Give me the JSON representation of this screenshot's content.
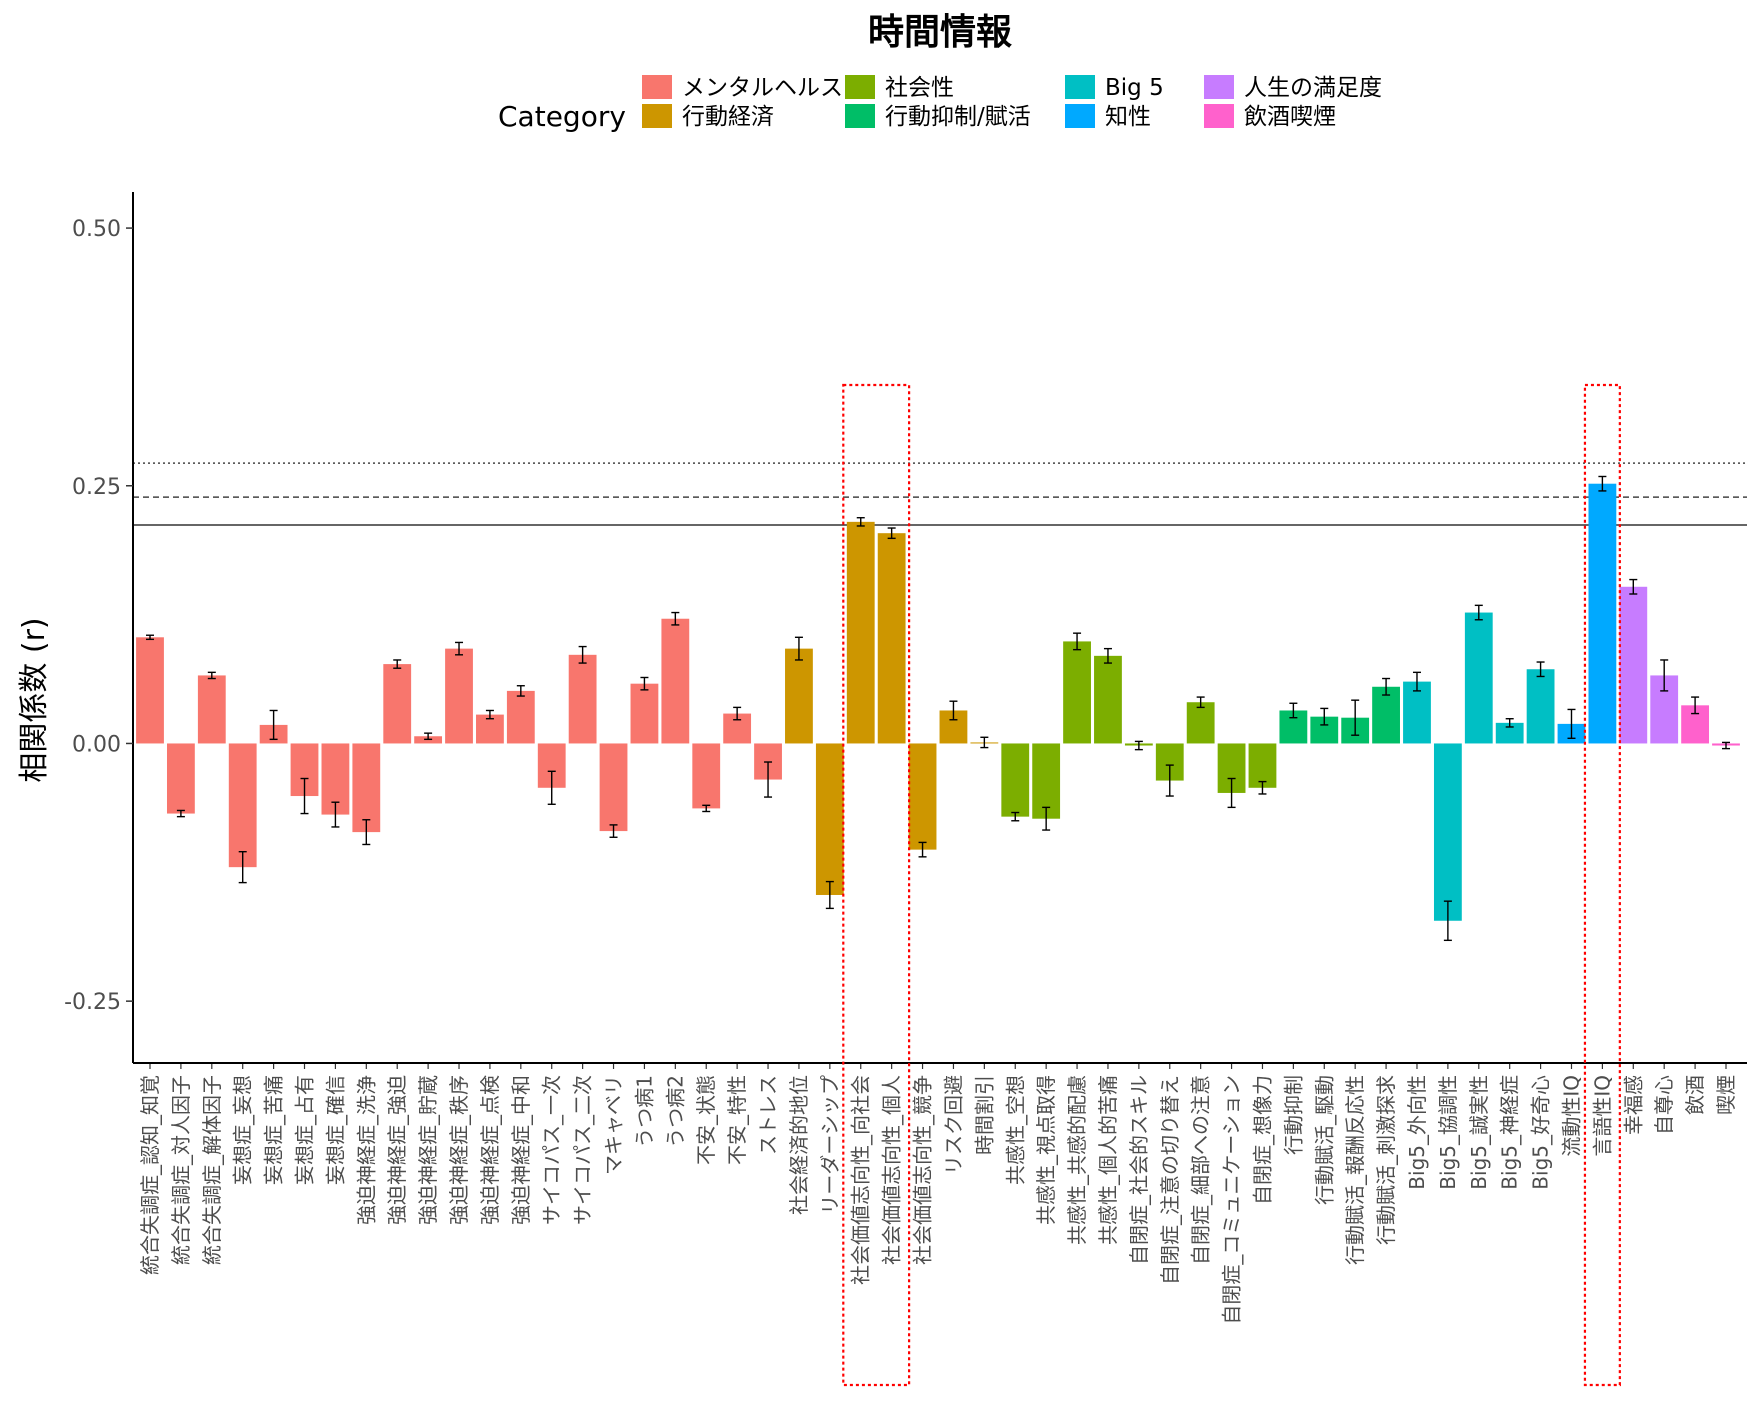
{
  "chart_data": {
    "type": "bar",
    "title": "時間情報",
    "xlabel": "",
    "ylabel": "相関係数 (r)",
    "ylim": [
      -0.31,
      0.535
    ],
    "yticks": [
      -0.25,
      0.0,
      0.25,
      0.5
    ],
    "ytick_labels": [
      "-0.25",
      "0.00",
      "0.25",
      "0.50"
    ],
    "grid": false,
    "legend": {
      "title": "Category",
      "placement": "top",
      "entries": [
        {
          "name": "メンタルヘルス",
          "color": "#F8766D"
        },
        {
          "name": "行動経済",
          "color": "#CD9600"
        },
        {
          "name": "社会性",
          "color": "#7CAE00"
        },
        {
          "name": "行動抑制/賦活",
          "color": "#00BE67"
        },
        {
          "name": "Big 5",
          "color": "#00BFC4"
        },
        {
          "name": "知性",
          "color": "#00A9FF"
        },
        {
          "name": "人生の満足度",
          "color": "#C77CFF"
        },
        {
          "name": "飲酒喫煙",
          "color": "#FF61CC"
        }
      ]
    },
    "reference_lines": [
      {
        "value": 0.272,
        "style": "dotted"
      },
      {
        "value": 0.239,
        "style": "dashed"
      },
      {
        "value": 0.212,
        "style": "solid"
      }
    ],
    "highlight_boxes": [
      {
        "from": "社会価値志向性_向社会",
        "to": "社会価値志向性_個人"
      },
      {
        "from": "言語性IQ",
        "to": "言語性IQ"
      }
    ],
    "bars": [
      {
        "label": "統合失調症_認知_知覚",
        "category": "メンタルヘルス",
        "value": 0.103,
        "err": 0.002
      },
      {
        "label": "統合失調症_対人因子",
        "category": "メンタルヘルス",
        "value": -0.068,
        "err": 0.003
      },
      {
        "label": "統合失調症_解体因子",
        "category": "メンタルヘルス",
        "value": 0.066,
        "err": 0.003
      },
      {
        "label": "妄想症_妄想",
        "category": "メンタルヘルス",
        "value": -0.12,
        "err": 0.015
      },
      {
        "label": "妄想症_苦痛",
        "category": "メンタルヘルス",
        "value": 0.018,
        "err": 0.014
      },
      {
        "label": "妄想症_占有",
        "category": "メンタルヘルス",
        "value": -0.051,
        "err": 0.017
      },
      {
        "label": "妄想症_確信",
        "category": "メンタルヘルス",
        "value": -0.069,
        "err": 0.012
      },
      {
        "label": "強迫神経症_洗浄",
        "category": "メンタルヘルス",
        "value": -0.086,
        "err": 0.012
      },
      {
        "label": "強迫神経症_強迫",
        "category": "メンタルヘルス",
        "value": 0.077,
        "err": 0.004
      },
      {
        "label": "強迫神経症_貯蔵",
        "category": "メンタルヘルス",
        "value": 0.007,
        "err": 0.003
      },
      {
        "label": "強迫神経症_秩序",
        "category": "メンタルヘルス",
        "value": 0.092,
        "err": 0.006
      },
      {
        "label": "強迫神経症_点検",
        "category": "メンタルヘルス",
        "value": 0.028,
        "err": 0.004
      },
      {
        "label": "強迫神経症_中和",
        "category": "メンタルヘルス",
        "value": 0.051,
        "err": 0.005
      },
      {
        "label": "サイコパス_一次",
        "category": "メンタルヘルス",
        "value": -0.043,
        "err": 0.016
      },
      {
        "label": "サイコパス_二次",
        "category": "メンタルヘルス",
        "value": 0.086,
        "err": 0.008
      },
      {
        "label": "マキャベリ",
        "category": "メンタルヘルス",
        "value": -0.085,
        "err": 0.006
      },
      {
        "label": "うつ病1",
        "category": "メンタルヘルス",
        "value": 0.058,
        "err": 0.006
      },
      {
        "label": "うつ病2",
        "category": "メンタルヘルス",
        "value": 0.121,
        "err": 0.006
      },
      {
        "label": "不安_状態",
        "category": "メンタルヘルス",
        "value": -0.063,
        "err": 0.003
      },
      {
        "label": "不安_特性",
        "category": "メンタルヘルス",
        "value": 0.029,
        "err": 0.006
      },
      {
        "label": "ストレス",
        "category": "メンタルヘルス",
        "value": -0.035,
        "err": 0.017
      },
      {
        "label": "社会経済的地位",
        "category": "行動経済",
        "value": 0.092,
        "err": 0.011
      },
      {
        "label": "リーダーシップ",
        "category": "行動経済",
        "value": -0.147,
        "err": 0.013
      },
      {
        "label": "社会価値志向性_向社会",
        "category": "行動経済",
        "value": 0.215,
        "err": 0.004
      },
      {
        "label": "社会価値志向性_個人",
        "category": "行動経済",
        "value": 0.204,
        "err": 0.005
      },
      {
        "label": "社会価値志向性_競争",
        "category": "行動経済",
        "value": -0.103,
        "err": 0.007
      },
      {
        "label": "リスク回避",
        "category": "行動経済",
        "value": 0.032,
        "err": 0.009
      },
      {
        "label": "時間割引",
        "category": "行動経済",
        "value": 0.001,
        "err": 0.005
      },
      {
        "label": "共感性_空想",
        "category": "社会性",
        "value": -0.071,
        "err": 0.004
      },
      {
        "label": "共感性_視点取得",
        "category": "社会性",
        "value": -0.073,
        "err": 0.011
      },
      {
        "label": "共感性_共感的配慮",
        "category": "社会性",
        "value": 0.099,
        "err": 0.008
      },
      {
        "label": "共感性_個人的苦痛",
        "category": "社会性",
        "value": 0.085,
        "err": 0.007
      },
      {
        "label": "自閉症_社会的スキル",
        "category": "社会性",
        "value": -0.002,
        "err": 0.004
      },
      {
        "label": "自閉症_注意の切り替え",
        "category": "社会性",
        "value": -0.036,
        "err": 0.015
      },
      {
        "label": "自閉症_細部への注意",
        "category": "社会性",
        "value": 0.04,
        "err": 0.005
      },
      {
        "label": "自閉症_コミュニケーション",
        "category": "社会性",
        "value": -0.048,
        "err": 0.014
      },
      {
        "label": "自閉症_想像力",
        "category": "社会性",
        "value": -0.043,
        "err": 0.006
      },
      {
        "label": "行動抑制",
        "category": "行動抑制/賦活",
        "value": 0.032,
        "err": 0.007
      },
      {
        "label": "行動賦活_駆動",
        "category": "行動抑制/賦活",
        "value": 0.026,
        "err": 0.008
      },
      {
        "label": "行動賦活_報酬反応性",
        "category": "行動抑制/賦活",
        "value": 0.025,
        "err": 0.017
      },
      {
        "label": "行動賦活_刺激探求",
        "category": "行動抑制/賦活",
        "value": 0.055,
        "err": 0.008
      },
      {
        "label": "Big5_外向性",
        "category": "Big 5",
        "value": 0.06,
        "err": 0.009
      },
      {
        "label": "Big5_協調性",
        "category": "Big 5",
        "value": -0.172,
        "err": 0.019
      },
      {
        "label": "Big5_誠実性",
        "category": "Big 5",
        "value": 0.127,
        "err": 0.007
      },
      {
        "label": "Big5_神経症",
        "category": "Big 5",
        "value": 0.02,
        "err": 0.004
      },
      {
        "label": "Big5_好奇心",
        "category": "Big 5",
        "value": 0.072,
        "err": 0.007
      },
      {
        "label": "流動性IQ",
        "category": "知性",
        "value": 0.019,
        "err": 0.014
      },
      {
        "label": "言語性IQ",
        "category": "知性",
        "value": 0.252,
        "err": 0.007
      },
      {
        "label": "幸福感",
        "category": "人生の満足度",
        "value": 0.152,
        "err": 0.007
      },
      {
        "label": "自尊心",
        "category": "人生の満足度",
        "value": 0.066,
        "err": 0.015
      },
      {
        "label": "飲酒",
        "category": "飲酒喫煙",
        "value": 0.037,
        "err": 0.008
      },
      {
        "label": "喫煙",
        "category": "飲酒喫煙",
        "value": -0.002,
        "err": 0.003
      }
    ]
  }
}
